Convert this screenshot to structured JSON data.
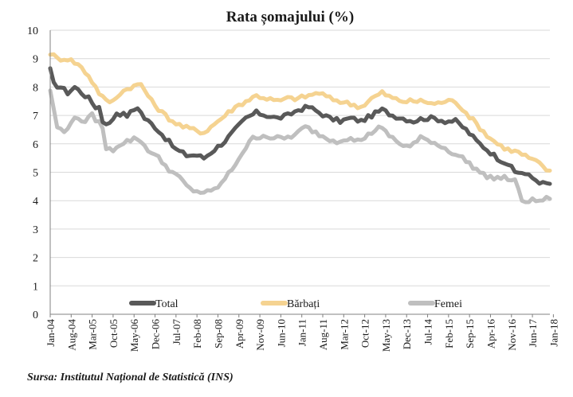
{
  "chart_data": {
    "type": "line",
    "title": "Rata șomajului (%)",
    "xlabel": "",
    "ylabel": "",
    "ylim": [
      0,
      10
    ],
    "yticks": [
      "0",
      "1",
      "2",
      "3",
      "4",
      "5",
      "6",
      "7",
      "8",
      "9",
      "10"
    ],
    "grid": "horizontal",
    "legend_position": "bottom-inside",
    "xtick_labels": [
      "Jan-04",
      "Aug-04",
      "Mar-05",
      "Oct-05",
      "May-06",
      "Dec-06",
      "Jul-07",
      "Feb-08",
      "Sep-08",
      "Apr-09",
      "Nov-09",
      "Jun-10",
      "Jan-11",
      "Aug-11",
      "Mar-12",
      "Oct-12",
      "May-13",
      "Dec-13",
      "Jul-14",
      "Feb-15",
      "Sep-15",
      "Apr-16",
      "Nov-16",
      "Jun-17",
      "Jan-18"
    ],
    "series": [
      {
        "name": "Total",
        "color": "#595959",
        "anchors": [
          [
            0,
            8.6
          ],
          [
            1,
            8.1
          ],
          [
            3,
            8.0
          ],
          [
            5,
            7.8
          ],
          [
            7,
            8.0
          ],
          [
            9,
            7.8
          ],
          [
            11,
            7.6
          ],
          [
            13,
            7.3
          ],
          [
            14,
            7.3
          ],
          [
            15,
            6.8
          ],
          [
            17,
            6.7
          ],
          [
            19,
            7.1
          ],
          [
            22,
            7.0
          ],
          [
            25,
            7.3
          ],
          [
            27,
            6.9
          ],
          [
            30,
            6.6
          ],
          [
            33,
            6.2
          ],
          [
            36,
            5.8
          ],
          [
            39,
            5.6
          ],
          [
            42,
            5.6
          ],
          [
            44,
            5.5
          ],
          [
            47,
            5.8
          ],
          [
            50,
            6.1
          ],
          [
            53,
            6.5
          ],
          [
            56,
            6.9
          ],
          [
            59,
            7.1
          ],
          [
            62,
            7.0
          ],
          [
            65,
            6.9
          ],
          [
            68,
            7.0
          ],
          [
            71,
            7.2
          ],
          [
            74,
            7.3
          ],
          [
            77,
            7.1
          ],
          [
            80,
            6.9
          ],
          [
            83,
            6.8
          ],
          [
            86,
            6.9
          ],
          [
            89,
            6.8
          ],
          [
            92,
            7.0
          ],
          [
            95,
            7.2
          ],
          [
            98,
            7.0
          ],
          [
            101,
            6.9
          ],
          [
            104,
            6.8
          ],
          [
            107,
            6.9
          ],
          [
            110,
            6.9
          ],
          [
            113,
            6.8
          ],
          [
            116,
            6.8
          ],
          [
            119,
            6.5
          ],
          [
            122,
            6.1
          ],
          [
            125,
            5.8
          ],
          [
            128,
            5.5
          ],
          [
            131,
            5.3
          ],
          [
            133,
            5.0
          ],
          [
            135,
            5.0
          ],
          [
            138,
            4.8
          ],
          [
            141,
            4.6
          ],
          [
            143,
            4.6
          ]
        ]
      },
      {
        "name": "Bărbați",
        "color": "#f5d391",
        "anchors": [
          [
            0,
            9.2
          ],
          [
            2,
            9.0
          ],
          [
            5,
            9.0
          ],
          [
            8,
            8.8
          ],
          [
            11,
            8.4
          ],
          [
            14,
            7.8
          ],
          [
            16,
            7.5
          ],
          [
            18,
            7.5
          ],
          [
            20,
            7.8
          ],
          [
            23,
            8.0
          ],
          [
            26,
            8.1
          ],
          [
            29,
            7.5
          ],
          [
            32,
            7.1
          ],
          [
            35,
            6.8
          ],
          [
            38,
            6.6
          ],
          [
            41,
            6.5
          ],
          [
            44,
            6.4
          ],
          [
            47,
            6.7
          ],
          [
            50,
            7.0
          ],
          [
            53,
            7.3
          ],
          [
            56,
            7.5
          ],
          [
            59,
            7.7
          ],
          [
            62,
            7.6
          ],
          [
            65,
            7.5
          ],
          [
            68,
            7.6
          ],
          [
            71,
            7.6
          ],
          [
            74,
            7.7
          ],
          [
            77,
            7.8
          ],
          [
            80,
            7.6
          ],
          [
            83,
            7.5
          ],
          [
            86,
            7.4
          ],
          [
            89,
            7.3
          ],
          [
            92,
            7.6
          ],
          [
            95,
            7.8
          ],
          [
            98,
            7.6
          ],
          [
            101,
            7.5
          ],
          [
            104,
            7.5
          ],
          [
            107,
            7.5
          ],
          [
            110,
            7.4
          ],
          [
            113,
            7.5
          ],
          [
            116,
            7.5
          ],
          [
            119,
            7.1
          ],
          [
            122,
            6.7
          ],
          [
            125,
            6.3
          ],
          [
            128,
            6.0
          ],
          [
            131,
            5.8
          ],
          [
            134,
            5.7
          ],
          [
            137,
            5.5
          ],
          [
            140,
            5.3
          ],
          [
            143,
            5.0
          ]
        ]
      },
      {
        "name": "Femei",
        "color": "#bfbfbf",
        "anchors": [
          [
            0,
            7.9
          ],
          [
            1,
            7.2
          ],
          [
            2,
            6.6
          ],
          [
            4,
            6.4
          ],
          [
            6,
            6.8
          ],
          [
            8,
            6.9
          ],
          [
            10,
            6.8
          ],
          [
            12,
            7.0
          ],
          [
            15,
            6.6
          ],
          [
            16,
            5.8
          ],
          [
            18,
            5.8
          ],
          [
            20,
            6.0
          ],
          [
            22,
            6.1
          ],
          [
            25,
            6.2
          ],
          [
            28,
            5.8
          ],
          [
            31,
            5.5
          ],
          [
            34,
            5.1
          ],
          [
            37,
            4.8
          ],
          [
            40,
            4.4
          ],
          [
            43,
            4.3
          ],
          [
            46,
            4.3
          ],
          [
            49,
            4.6
          ],
          [
            52,
            5.1
          ],
          [
            55,
            5.7
          ],
          [
            58,
            6.2
          ],
          [
            61,
            6.3
          ],
          [
            64,
            6.2
          ],
          [
            67,
            6.2
          ],
          [
            70,
            6.3
          ],
          [
            73,
            6.6
          ],
          [
            76,
            6.4
          ],
          [
            79,
            6.2
          ],
          [
            82,
            6.1
          ],
          [
            85,
            6.2
          ],
          [
            88,
            6.1
          ],
          [
            91,
            6.3
          ],
          [
            94,
            6.6
          ],
          [
            97,
            6.3
          ],
          [
            100,
            6.0
          ],
          [
            103,
            5.9
          ],
          [
            106,
            6.2
          ],
          [
            109,
            6.1
          ],
          [
            112,
            5.9
          ],
          [
            115,
            5.7
          ],
          [
            118,
            5.5
          ],
          [
            121,
            5.2
          ],
          [
            124,
            4.9
          ],
          [
            127,
            4.8
          ],
          [
            130,
            4.8
          ],
          [
            133,
            4.7
          ],
          [
            135,
            4.0
          ],
          [
            137,
            4.0
          ],
          [
            140,
            4.0
          ],
          [
            143,
            4.1
          ]
        ]
      }
    ]
  },
  "source_note": "Sursa: Institutul Național de Statistică (INS)"
}
